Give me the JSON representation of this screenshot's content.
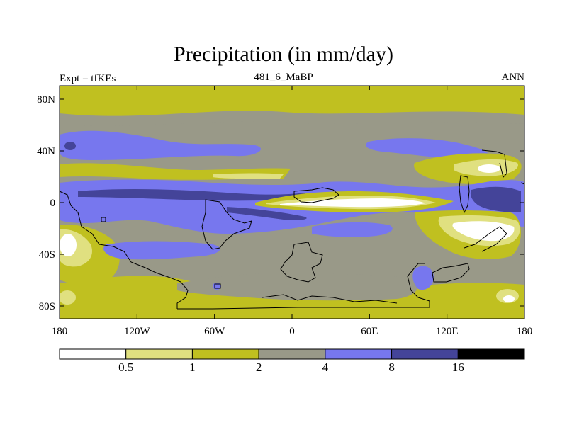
{
  "title": "Precipitation (in mm/day)",
  "left_label": "Expt = tfKEs",
  "center_label": "481_6_MaBP",
  "right_label": "ANN",
  "map": {
    "lat_ticks": [
      "80N",
      "40N",
      "0",
      "40S",
      "80S"
    ],
    "lon_ticks": [
      "180",
      "120W",
      "60W",
      "0",
      "60E",
      "120E",
      "180"
    ]
  },
  "colorbar": {
    "levels": [
      "0.5",
      "1",
      "2",
      "4",
      "8",
      "16"
    ],
    "colors": [
      "#ffffff",
      "#e0e080",
      "#c0c020",
      "#999988",
      "#7777ee",
      "#444499",
      "#000000"
    ]
  },
  "palette": {
    "lt05": "#ffffff",
    "r05_1": "#e0e080",
    "r1_2": "#c0c020",
    "r2_4": "#999988",
    "r4_8": "#7777ee",
    "r8_16": "#444499",
    "gt16": "#000000"
  }
}
